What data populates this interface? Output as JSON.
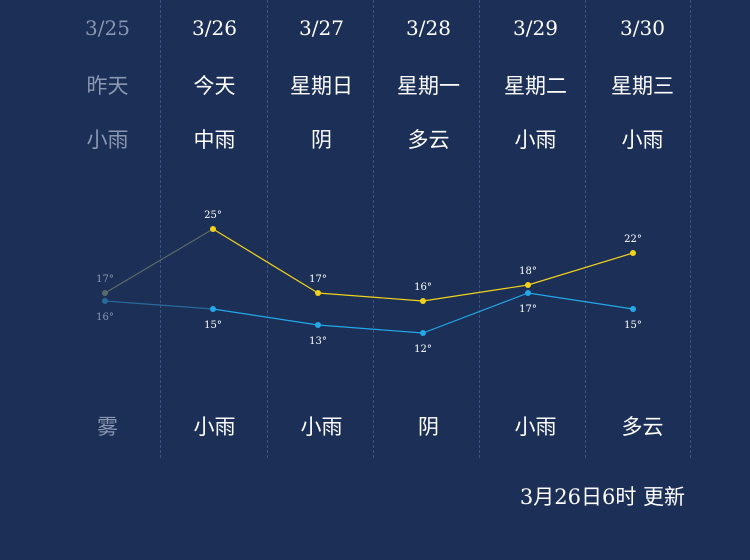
{
  "days": [
    {
      "date": "3/25",
      "weekday": "昨天",
      "day_condition": "小雨",
      "night_condition": "雾",
      "past": true
    },
    {
      "date": "3/26",
      "weekday": "今天",
      "day_condition": "中雨",
      "night_condition": "小雨",
      "past": false
    },
    {
      "date": "3/27",
      "weekday": "星期日",
      "day_condition": "阴",
      "night_condition": "小雨",
      "past": false
    },
    {
      "date": "3/28",
      "weekday": "星期一",
      "day_condition": "多云",
      "night_condition": "阴",
      "past": false
    },
    {
      "date": "3/29",
      "weekday": "星期二",
      "day_condition": "小雨",
      "night_condition": "小雨",
      "past": false
    },
    {
      "date": "3/30",
      "weekday": "星期三",
      "day_condition": "小雨",
      "night_condition": "多云",
      "past": false
    }
  ],
  "chart_data": {
    "type": "line",
    "categories": [
      "3/25",
      "3/26",
      "3/27",
      "3/28",
      "3/29",
      "3/30"
    ],
    "series": [
      {
        "values": [
          17,
          25,
          17,
          16,
          18,
          22
        ],
        "labels": [
          "17°",
          "25°",
          "17°",
          "16°",
          "18°",
          "22°"
        ],
        "color": "#f2d21b"
      },
      {
        "values": [
          16,
          15,
          13,
          12,
          17,
          15
        ],
        "labels": [
          "16°",
          "15°",
          "13°",
          "12°",
          "17°",
          "15°"
        ],
        "color": "#24a8e8"
      }
    ],
    "past_color": "#5a6a6a"
  },
  "update_text": "3月26日6时 更新"
}
